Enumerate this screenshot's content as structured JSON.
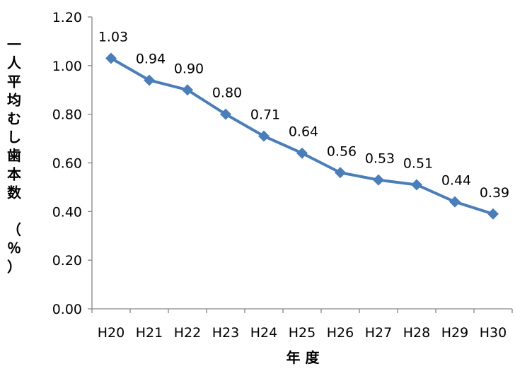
{
  "chart_data": {
    "type": "line",
    "categories": [
      "H20",
      "H21",
      "H22",
      "H23",
      "H24",
      "H25",
      "H26",
      "H27",
      "H28",
      "H29",
      "H30"
    ],
    "series": [
      {
        "values": [
          1.03,
          0.94,
          0.9,
          0.8,
          0.71,
          0.64,
          0.56,
          0.53,
          0.51,
          0.44,
          0.39
        ]
      }
    ],
    "data_labels": [
      "1.03",
      "0.94",
      "0.90",
      "0.80",
      "0.71",
      "0.64",
      "0.56",
      "0.53",
      "0.51",
      "0.44",
      "0.39"
    ],
    "yticks": [
      "0.00",
      "0.20",
      "0.40",
      "0.60",
      "0.80",
      "1.00",
      "1.20"
    ],
    "ylim": [
      0,
      1.2
    ],
    "xlabel": "年 度",
    "ylabel": "一人平均むし歯本数（％）",
    "ylabel_lines": [
      "一",
      "人",
      "平",
      "均",
      "む",
      "し",
      "歯",
      "本",
      "数",
      "",
      "（",
      "％",
      "）"
    ],
    "grid": false,
    "legend": "none",
    "line_color": "#4a7ebb",
    "marker": "diamond"
  }
}
